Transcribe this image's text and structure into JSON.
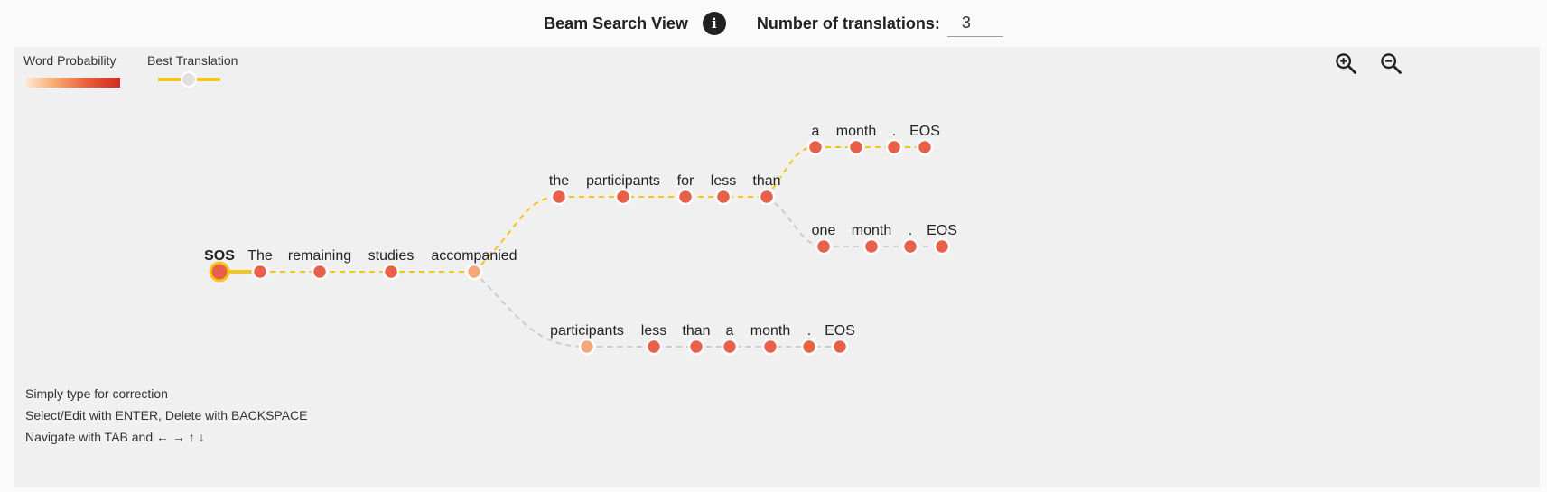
{
  "header": {
    "title": "Beam Search View",
    "info_icon": "info-icon",
    "num_translations_label": "Number of translations:",
    "num_translations_value": "3"
  },
  "legend": {
    "word_probability": "Word Probability",
    "best_translation": "Best Translation"
  },
  "toolbar": {
    "zoom_in_icon": "zoom-in-icon",
    "zoom_out_icon": "zoom-out-icon"
  },
  "colors": {
    "best_path": "#f5c518",
    "other_path": "#cccccc",
    "node_high": "#e8604a",
    "node_low": "#f6a77a",
    "node_border": "#ffffff"
  },
  "beam_tree": {
    "root": "SOS",
    "shared_prefix": [
      "The",
      "remaining",
      "studies",
      "accompanied"
    ],
    "branches": [
      {
        "best": true,
        "tokens": [
          "the",
          "participants",
          "for",
          "less",
          "than"
        ],
        "sub_branches": [
          {
            "best": true,
            "tokens": [
              "a",
              "month",
              ".",
              "EOS"
            ]
          },
          {
            "best": false,
            "tokens": [
              "one",
              "month",
              ".",
              "EOS"
            ]
          }
        ]
      },
      {
        "best": false,
        "tokens": [
          "participants",
          "less",
          "than",
          "a",
          "month",
          ".",
          "EOS"
        ]
      }
    ]
  },
  "instructions": [
    "Simply type for correction",
    "Select/Edit with ENTER, Delete with BACKSPACE",
    "Navigate with TAB and ← → ↑ ↓"
  ]
}
